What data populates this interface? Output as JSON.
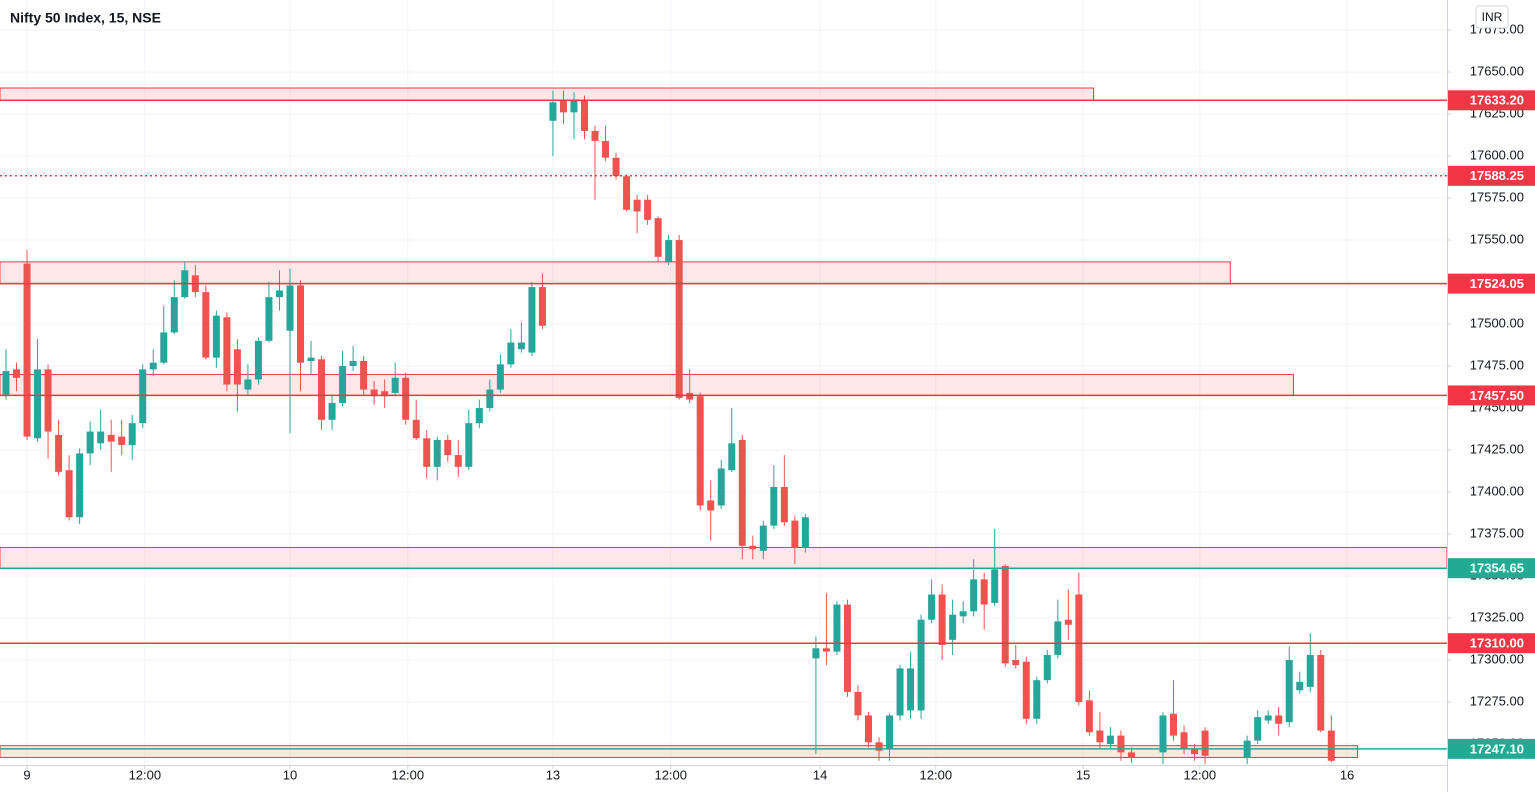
{
  "chart_data": {
    "type": "candlestick",
    "title": "Nifty 50 Index, 15, NSE",
    "currency": "INR",
    "colors": {
      "up": "#26a69a",
      "down": "#ef5350"
    },
    "grid": true,
    "xlim": [
      -2.57,
      135
    ],
    "ylim": [
      17237.5,
      17692.9
    ],
    "xticks": [
      {
        "value": 0,
        "label": "9"
      },
      {
        "value": 11.2,
        "label": "12:00"
      },
      {
        "value": 25,
        "label": "10"
      },
      {
        "value": 36.2,
        "label": "12:00"
      },
      {
        "value": 50,
        "label": "13"
      },
      {
        "value": 61.2,
        "label": "12:00"
      },
      {
        "value": 75.4,
        "label": "14"
      },
      {
        "value": 86.4,
        "label": "12:00"
      },
      {
        "value": 100.4,
        "label": "15"
      },
      {
        "value": 111.5,
        "label": "12:00"
      },
      {
        "value": 125.5,
        "label": "16"
      }
    ],
    "yticks": [
      {
        "value": 17250,
        "label": "17250.00"
      },
      {
        "value": 17275,
        "label": "17275.00"
      },
      {
        "value": 17300,
        "label": "17300.00"
      },
      {
        "value": 17325,
        "label": "17325.00"
      },
      {
        "value": 17350,
        "label": "17350.00"
      },
      {
        "value": 17375,
        "label": "17375.00"
      },
      {
        "value": 17400,
        "label": "17400.00"
      },
      {
        "value": 17425,
        "label": "17425.00"
      },
      {
        "value": 17450,
        "label": "17450.00"
      },
      {
        "value": 17475,
        "label": "17475.00"
      },
      {
        "value": 17500,
        "label": "17500.00"
      },
      {
        "value": 17525,
        "label": "17525.00"
      },
      {
        "value": 17550,
        "label": "17550.00"
      },
      {
        "value": 17575,
        "label": "17575.00"
      },
      {
        "value": 17600,
        "label": "17600.00"
      },
      {
        "value": 17625,
        "label": "17625.00"
      },
      {
        "value": 17650,
        "label": "17650.00"
      },
      {
        "value": 17675,
        "label": "17675.00"
      }
    ],
    "levels": [
      {
        "value": 17633.2,
        "label": "17633.20",
        "color": "#f23645",
        "style": "solid",
        "zone": [
          17640.5,
          17633.2
        ],
        "zone_end": 101.4
      },
      {
        "value": 17588.25,
        "label": "17588.25",
        "color": "#f23645",
        "style": "dotted"
      },
      {
        "value": 17524.05,
        "label": "17524.05",
        "color": "#f23645",
        "style": "solid",
        "zone": [
          17537,
          17524.05
        ],
        "zone_end": 114.4
      },
      {
        "value": 17457.5,
        "label": "17457.50",
        "color": "#f23645",
        "style": "solid",
        "zone": [
          17470,
          17457.5
        ],
        "zone_end": 120.4
      },
      {
        "value": 17354.65,
        "label": "17354.65",
        "color": "#22ab94",
        "style": "solid",
        "zone": [
          17367,
          17354.65
        ],
        "zone_end": 135
      },
      {
        "value": 17310,
        "label": "17310.00",
        "color": "#f23645",
        "style": "solid"
      },
      {
        "value": 17247.1,
        "label": "17247.10",
        "color": "#22ab94",
        "style": "solid",
        "zone": [
          17249,
          17242
        ],
        "zone_end": 126.5
      }
    ],
    "x": [
      -2,
      -1,
      0,
      1,
      2,
      3,
      4,
      5,
      6,
      7,
      8,
      9,
      10,
      11,
      12,
      13,
      14,
      15,
      16,
      17,
      18,
      19,
      20,
      21,
      22,
      23,
      24,
      25,
      26,
      27,
      28,
      29,
      30,
      31,
      32,
      33,
      34,
      35,
      36,
      37,
      38,
      39,
      40,
      41,
      42,
      43,
      44,
      45,
      46,
      47,
      48,
      49,
      50,
      51,
      52,
      53,
      54,
      55,
      56,
      57,
      58,
      59,
      60,
      61,
      62,
      63,
      64,
      65,
      66,
      67,
      68,
      69,
      70,
      71,
      72,
      73,
      74,
      75,
      76,
      77,
      78,
      79,
      80,
      81,
      82,
      83,
      84,
      85,
      86,
      87,
      88,
      89,
      90,
      91,
      92,
      93,
      94,
      95,
      96,
      97,
      98,
      99,
      100,
      101,
      102,
      103,
      104,
      105,
      108,
      109,
      110,
      111,
      112,
      116,
      117,
      118,
      119,
      120,
      121,
      122,
      123,
      124
    ],
    "open": [
      17458,
      17473,
      17536,
      17432,
      17473,
      17434,
      17413,
      17385,
      17423,
      17429,
      17434,
      17433,
      17428,
      17441,
      17473,
      17477,
      17495,
      17516,
      17529,
      17519,
      17480,
      17504,
      17485,
      17461,
      17467,
      17490,
      17516,
      17496,
      17523,
      17478,
      17479,
      17443,
      17453,
      17475,
      17478,
      17461,
      17460,
      17459,
      17468,
      17443,
      17432,
      17415,
      17431,
      17422,
      17415,
      17441,
      17450,
      17461,
      17476,
      17485,
      17483,
      17522,
      17621,
      17633,
      17626,
      17633,
      17615,
      17609,
      17599,
      17588,
      17574,
      17574,
      17563,
      17537,
      17550,
      17459,
      17457,
      17395,
      17392,
      17413,
      17431,
      17368,
      17365,
      17380,
      17403,
      17383,
      17367,
      17301,
      17307,
      17305,
      17333,
      17281,
      17267,
      17251,
      17247,
      17267,
      17270,
      17270,
      17324,
      17339,
      17312,
      17326,
      17329,
      17348,
      17334,
      17356,
      17300,
      17299,
      17265,
      17288,
      17303,
      17324,
      17339,
      17276,
      17258,
      17250,
      17255,
      17245,
      17245,
      17268,
      17257,
      17247,
      17258,
      17242,
      17252,
      17264,
      17267,
      17263,
      17282,
      17284,
      17303,
      17258
    ],
    "high": [
      17485,
      17477,
      17544,
      17491,
      17476,
      17443,
      17422,
      17426,
      17442,
      17449,
      17443,
      17443,
      17446,
      17476,
      17485,
      17511,
      17526,
      17537,
      17535,
      17523,
      17508,
      17507,
      17491,
      17476,
      17492,
      17525,
      17532,
      17533,
      17526,
      17490,
      17481,
      17458,
      17484,
      17487,
      17481,
      17466,
      17467,
      17477,
      17471,
      17455,
      17437,
      17433,
      17434,
      17431,
      17449,
      17455,
      17467,
      17482,
      17497,
      17501,
      17525,
      17530,
      17639,
      17639,
      17638,
      17636,
      17618,
      17618,
      17602,
      17589,
      17577,
      17577,
      17564,
      17553,
      17553,
      17473,
      17459,
      17407,
      17419,
      17450,
      17434,
      17374,
      17383,
      17416,
      17422,
      17386,
      17387,
      17314,
      17340,
      17335,
      17336,
      17285,
      17269,
      17254,
      17268,
      17297,
      17305,
      17327,
      17348,
      17345,
      17336,
      17335,
      17360,
      17352,
      17378,
      17357,
      17309,
      17302,
      17290,
      17306,
      17336,
      17342,
      17352,
      17282,
      17269,
      17260,
      17258,
      17248,
      17269,
      17288,
      17261,
      17250,
      17260,
      17255,
      17270,
      17270,
      17272,
      17308,
      17293,
      17316,
      17306,
      17267
    ],
    "low": [
      17455,
      17460,
      17431,
      17430,
      17420,
      17410,
      17383,
      17381,
      17416,
      17425,
      17412,
      17422,
      17419,
      17438,
      17469,
      17476,
      17494,
      17515,
      17516,
      17479,
      17474,
      17460,
      17448,
      17458,
      17464,
      17489,
      17508,
      17435,
      17460,
      17470,
      17437,
      17437,
      17451,
      17472,
      17458,
      17452,
      17450,
      17457,
      17440,
      17431,
      17408,
      17407,
      17418,
      17409,
      17413,
      17438,
      17448,
      17459,
      17474,
      17483,
      17481,
      17497,
      17600,
      17619,
      17610,
      17610,
      17574,
      17597,
      17586,
      17567,
      17554,
      17559,
      17537,
      17535,
      17455,
      17453,
      17389,
      17371,
      17390,
      17412,
      17360,
      17360,
      17360,
      17378,
      17380,
      17357,
      17364,
      17244,
      17297,
      17303,
      17278,
      17264,
      17248,
      17240,
      17240,
      17264,
      17265,
      17265,
      17322,
      17300,
      17303,
      17322,
      17326,
      17318,
      17332,
      17296,
      17295,
      17262,
      17262,
      17286,
      17301,
      17312,
      17273,
      17255,
      17247,
      17247,
      17240,
      17239,
      17238,
      17252,
      17244,
      17240,
      17238,
      17238,
      17250,
      17262,
      17255,
      17260,
      17280,
      17281,
      17257,
      17239
    ],
    "close": [
      17472,
      17468,
      17433,
      17473,
      17436,
      17412,
      17385,
      17423,
      17436,
      17436,
      17430,
      17428,
      17441,
      17473,
      17477,
      17495,
      17516,
      17532,
      17519,
      17480,
      17505,
      17464,
      17464,
      17467,
      17490,
      17516,
      17520,
      17523,
      17477,
      17480,
      17443,
      17453,
      17475,
      17478,
      17461,
      17457,
      17457,
      17468,
      17443,
      17432,
      17415,
      17431,
      17422,
      17415,
      17441,
      17450,
      17461,
      17476,
      17489,
      17489,
      17522,
      17499,
      17632,
      17626,
      17633,
      17615,
      17609,
      17599,
      17588,
      17568,
      17567,
      17562,
      17540,
      17550,
      17456,
      17455,
      17392,
      17389,
      17414,
      17429,
      17368,
      17366,
      17380,
      17403,
      17382,
      17367,
      17385,
      17307,
      17305,
      17333,
      17281,
      17267,
      17251,
      17246,
      17267,
      17295,
      17295,
      17324,
      17339,
      17309,
      17327,
      17329,
      17348,
      17333,
      17354,
      17298,
      17297,
      17265,
      17288,
      17303,
      17323,
      17321,
      17275,
      17257,
      17251,
      17255,
      17245,
      17242,
      17267,
      17255,
      17247,
      17244,
      17243,
      17252,
      17266,
      17267,
      17262,
      17300,
      17287,
      17303,
      17258,
      17240
    ]
  }
}
